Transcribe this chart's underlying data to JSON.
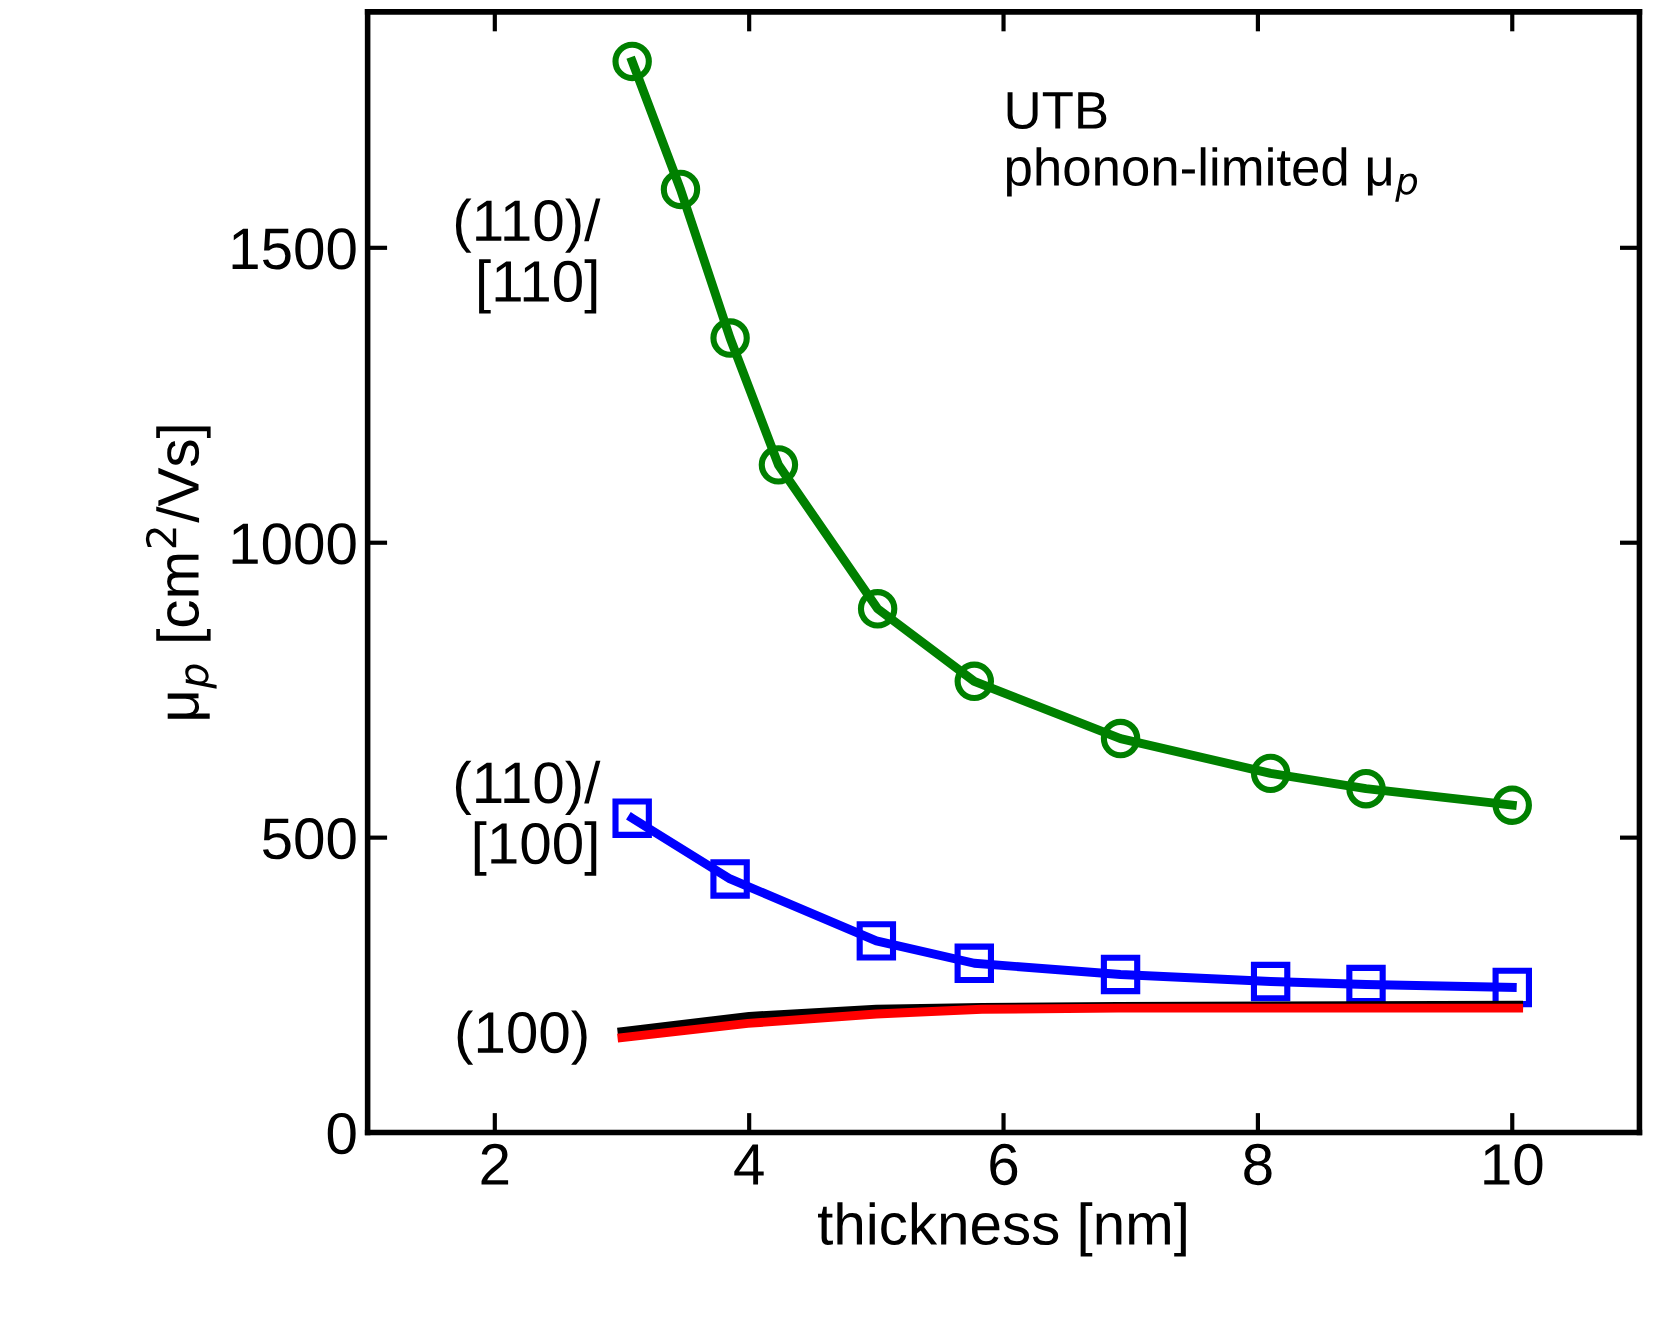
{
  "chart_data": {
    "type": "line",
    "xlabel": "thickness [nm]",
    "ylabel": "μ$_{p}$ [cm$^{2}$/Vs]",
    "xlim": [
      1,
      11
    ],
    "xticks": [
      2,
      4,
      6,
      8,
      10
    ],
    "ylim": [
      0,
      1900
    ],
    "yticks": [
      0,
      500,
      1000,
      1500
    ],
    "grid": false,
    "legend": false,
    "annotations": [
      "UTB\nphonon-limited μ$_{p}$"
    ],
    "series": [
      {
        "name": "(110)/\n[110]",
        "color": "#008000",
        "marker": "circle",
        "x": [
          3.08,
          3.46,
          3.85,
          4.23,
          5.01,
          5.77,
          6.92,
          8.1,
          8.85,
          10.0
        ],
        "values": [
          1816,
          1599,
          1347,
          1132,
          888,
          765,
          668,
          609,
          583,
          555
        ]
      },
      {
        "name": "(110)/\n[100]",
        "color": "#0000ff",
        "marker": "square",
        "x": [
          3.08,
          3.85,
          5.0,
          5.77,
          6.92,
          8.1,
          8.85,
          10.0
        ],
        "values": [
          533,
          430,
          325,
          287,
          268,
          256,
          251,
          246
        ]
      },
      {
        "color": "#000000",
        "marker": "none",
        "x": [
          3.0,
          4.0,
          5.0,
          5.83,
          6.9,
          10.05
        ],
        "values": [
          171,
          197,
          209,
          212,
          214,
          216
        ]
      },
      {
        "name": "(100)",
        "color": "#ff0000",
        "marker": "none",
        "x": [
          3.0,
          3.99,
          5.0,
          5.83,
          6.9,
          10.05
        ],
        "values": [
          161,
          185,
          201,
          209,
          211,
          211
        ]
      }
    ]
  }
}
